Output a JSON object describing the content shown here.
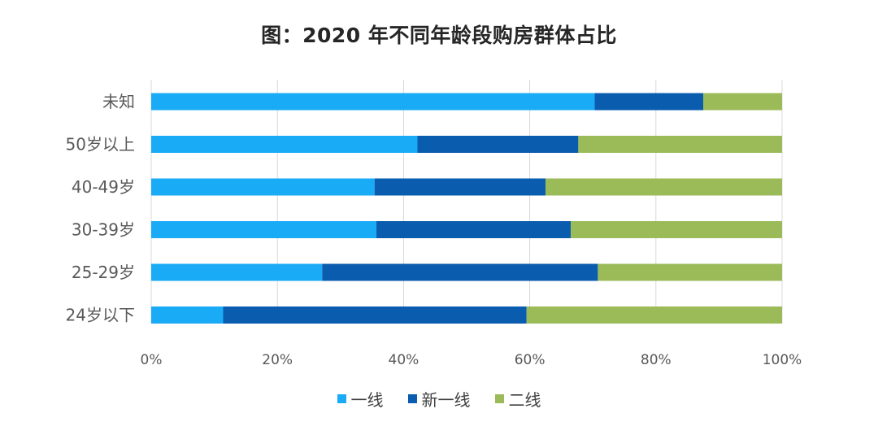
{
  "chart_data": {
    "type": "bar",
    "orientation": "horizontal",
    "stacked": true,
    "title": "图：2020 年不同年龄段购房群体占比",
    "categories": [
      "未知",
      "50岁以上",
      "40-49岁",
      "30-39岁",
      "25-29岁",
      "24岁以下"
    ],
    "series": [
      {
        "name": "一线",
        "color": "#1aabf7",
        "values": [
          70.3,
          42.2,
          35.4,
          35.7,
          27.1,
          11.4
        ]
      },
      {
        "name": "新一线",
        "color": "#0a5cae",
        "values": [
          17.2,
          25.5,
          27.1,
          30.8,
          43.7,
          48.1
        ]
      },
      {
        "name": "二线",
        "color": "#9bbb59",
        "values": [
          12.5,
          32.3,
          37.5,
          33.5,
          29.2,
          40.5
        ]
      }
    ],
    "xlim": [
      0,
      100
    ],
    "xticks": [
      "0%",
      "20%",
      "40%",
      "60%",
      "80%",
      "100%"
    ],
    "grid": "vertical",
    "legend_position": "bottom"
  }
}
